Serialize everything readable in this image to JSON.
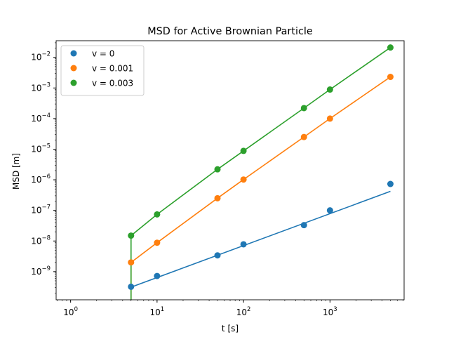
{
  "chart_data": {
    "type": "scatter",
    "title": "MSD for Active Brownian Particle",
    "xlabel": "t [s]",
    "ylabel": "MSD [m]",
    "xscale": "log",
    "yscale": "log",
    "xlim": [
      0.68,
      7200
    ],
    "ylim": [
      1.2e-10,
      0.035
    ],
    "grid": false,
    "legend": "top-left",
    "x_ticks": [
      {
        "value": 1,
        "base": "10",
        "exp": "0"
      },
      {
        "value": 10,
        "base": "10",
        "exp": "1"
      },
      {
        "value": 100,
        "base": "10",
        "exp": "2"
      },
      {
        "value": 1000,
        "base": "10",
        "exp": "3"
      }
    ],
    "y_ticks": [
      {
        "value": 1e-09,
        "base": "10",
        "exp": "−9"
      },
      {
        "value": 1e-08,
        "base": "10",
        "exp": "−8"
      },
      {
        "value": 1e-07,
        "base": "10",
        "exp": "−7"
      },
      {
        "value": 1e-06,
        "base": "10",
        "exp": "−6"
      },
      {
        "value": 1e-05,
        "base": "10",
        "exp": "−5"
      },
      {
        "value": 0.0001,
        "base": "10",
        "exp": "−4"
      },
      {
        "value": 0.001,
        "base": "10",
        "exp": "−3"
      },
      {
        "value": 0.01,
        "base": "10",
        "exp": "−2"
      }
    ],
    "series": [
      {
        "name": "v = 0",
        "color": "#1f77b4",
        "x": [
          5,
          10,
          50,
          100,
          500,
          1000,
          5000
        ],
        "y": [
          3.2e-10,
          7.2e-10,
          3.4e-09,
          7.8e-09,
          3.3e-08,
          1e-07,
          7.3e-07
        ],
        "fit_x": [
          5,
          5000
        ],
        "fit_y": [
          3.1e-10,
          4.2e-07
        ]
      },
      {
        "name": "v = 0.001",
        "color": "#ff7f0e",
        "x": [
          5,
          10,
          50,
          100,
          500,
          1000,
          5000
        ],
        "y": [
          2e-09,
          8.8e-09,
          2.5e-07,
          1.02e-06,
          2.5e-05,
          0.0001,
          0.0023
        ],
        "fit_x": [
          5,
          5,
          10,
          50,
          100,
          500,
          1000,
          5000
        ],
        "fit_y": [
          1.2e-10,
          2e-09,
          8.8e-09,
          2.5e-07,
          1.02e-06,
          2.5e-05,
          0.0001,
          0.0023
        ]
      },
      {
        "name": "v = 0.003",
        "color": "#2ca02c",
        "x": [
          5,
          10,
          50,
          100,
          500,
          1000,
          5000
        ],
        "y": [
          1.5e-08,
          7.4e-08,
          2.2e-06,
          8.8e-06,
          0.00022,
          0.00089,
          0.021
        ],
        "fit_x": [
          5,
          5,
          10,
          50,
          100,
          500,
          1000,
          5000
        ],
        "fit_y": [
          1.2e-10,
          1.5e-08,
          7.4e-08,
          2.2e-06,
          8.8e-06,
          0.00022,
          0.00089,
          0.021
        ]
      }
    ]
  }
}
